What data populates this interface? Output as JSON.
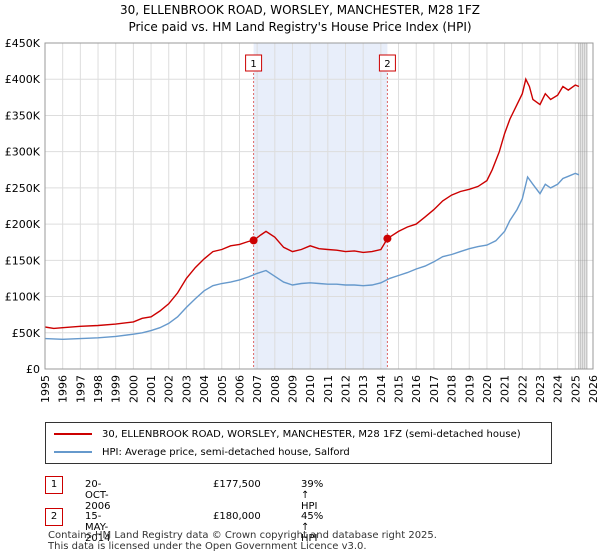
{
  "title_line1": "30, ELLENBROOK ROAD, WORSLEY, MANCHESTER, M28 1FZ",
  "title_line2": "Price paid vs. HM Land Registry's House Price Index (HPI)",
  "legend": [
    {
      "label": "30, ELLENBROOK ROAD, WORSLEY, MANCHESTER, M28 1FZ (semi-detached house)",
      "color": "#cc0000"
    },
    {
      "label": "HPI: Average price, semi-detached house, Salford",
      "color": "#6699cc"
    }
  ],
  "sales": [
    {
      "num": "1",
      "date": "20-OCT-2006",
      "price": "£177,500",
      "hpi": "39% ↑ HPI"
    },
    {
      "num": "2",
      "date": "15-MAY-2014",
      "price": "£180,000",
      "hpi": "45% ↑ HPI"
    }
  ],
  "footer_line1": "Contains HM Land Registry data © Crown copyright and database right 2025.",
  "footer_line2": "This data is licensed under the Open Government Licence v3.0.",
  "chart_data": {
    "type": "line",
    "title": "Price paid vs. HM Land Registry's House Price Index (HPI)",
    "xlabel": "",
    "ylabel": "",
    "xlim": [
      1995,
      2026
    ],
    "ylim": [
      0,
      450000
    ],
    "x_ticks": [
      "1995",
      "1996",
      "1997",
      "1998",
      "1999",
      "2000",
      "2001",
      "2002",
      "2003",
      "2004",
      "2005",
      "2006",
      "2007",
      "2008",
      "2009",
      "2010",
      "2011",
      "2012",
      "2013",
      "2014",
      "2015",
      "2016",
      "2017",
      "2018",
      "2019",
      "2020",
      "2021",
      "2022",
      "2023",
      "2024",
      "2025",
      "2026"
    ],
    "y_ticks": [
      {
        "value": 0,
        "label": "£0"
      },
      {
        "value": 50000,
        "label": "£50K"
      },
      {
        "value": 100000,
        "label": "£100K"
      },
      {
        "value": 150000,
        "label": "£150K"
      },
      {
        "value": 200000,
        "label": "£200K"
      },
      {
        "value": 250000,
        "label": "£250K"
      },
      {
        "value": 300000,
        "label": "£300K"
      },
      {
        "value": 350000,
        "label": "£350K"
      },
      {
        "value": 400000,
        "label": "£400K"
      },
      {
        "value": 450000,
        "label": "£450K"
      }
    ],
    "shaded_range": [
      2006.8,
      2014.37
    ],
    "markers": [
      {
        "label": "1",
        "x": 2006.8,
        "y": 177500
      },
      {
        "label": "2",
        "x": 2014.37,
        "y": 180000
      }
    ],
    "forecast_start": 2025.2,
    "series": [
      {
        "name": "30, ELLENBROOK ROAD, WORSLEY, MANCHESTER, M28 1FZ (semi-detached house)",
        "color": "#cc0000",
        "x": [
          1995,
          1995.5,
          1996,
          1997,
          1998,
          1999,
          2000,
          2000.5,
          2001,
          2001.5,
          2002,
          2002.5,
          2003,
          2003.5,
          2004,
          2004.5,
          2005,
          2005.5,
          2006,
          2006.5,
          2006.8,
          2007.2,
          2007.5,
          2008,
          2008.5,
          2009,
          2009.5,
          2010,
          2010.5,
          2011,
          2011.5,
          2012,
          2012.5,
          2013,
          2013.5,
          2014,
          2014.37,
          2015,
          2015.5,
          2016,
          2016.5,
          2017,
          2017.5,
          2018,
          2018.5,
          2019,
          2019.5,
          2020,
          2020.3,
          2020.7,
          2021,
          2021.3,
          2021.7,
          2022,
          2022.2,
          2022.4,
          2022.6,
          2023,
          2023.3,
          2023.6,
          2024,
          2024.3,
          2024.6,
          2025,
          2025.2
        ],
        "values": [
          58000,
          56000,
          57000,
          59000,
          60000,
          62000,
          65000,
          70000,
          72000,
          80000,
          90000,
          105000,
          125000,
          140000,
          152000,
          162000,
          165000,
          170000,
          172000,
          176000,
          177500,
          185000,
          190000,
          182000,
          168000,
          162000,
          165000,
          170000,
          166000,
          165000,
          164000,
          162000,
          163000,
          161000,
          162000,
          165000,
          180000,
          190000,
          196000,
          200000,
          210000,
          220000,
          232000,
          240000,
          245000,
          248000,
          252000,
          260000,
          275000,
          300000,
          325000,
          345000,
          365000,
          380000,
          400000,
          390000,
          372000,
          365000,
          380000,
          372000,
          378000,
          390000,
          385000,
          392000,
          390000
        ]
      },
      {
        "name": "HPI: Average price, semi-detached house, Salford",
        "color": "#6699cc",
        "x": [
          1995,
          1996,
          1997,
          1998,
          1999,
          2000,
          2000.5,
          2001,
          2001.5,
          2002,
          2002.5,
          2003,
          2003.5,
          2004,
          2004.5,
          2005,
          2005.5,
          2006,
          2006.5,
          2007,
          2007.5,
          2008,
          2008.5,
          2009,
          2009.5,
          2010,
          2010.5,
          2011,
          2011.5,
          2012,
          2012.5,
          2013,
          2013.5,
          2014,
          2014.5,
          2015,
          2015.5,
          2016,
          2016.5,
          2017,
          2017.5,
          2018,
          2018.5,
          2019,
          2019.5,
          2020,
          2020.5,
          2021,
          2021.3,
          2021.7,
          2022,
          2022.3,
          2022.6,
          2023,
          2023.3,
          2023.6,
          2024,
          2024.3,
          2024.6,
          2025,
          2025.2
        ],
        "values": [
          42000,
          41000,
          42000,
          43000,
          45000,
          48000,
          50000,
          53000,
          57000,
          63000,
          72000,
          85000,
          97000,
          108000,
          115000,
          118000,
          120000,
          123000,
          127000,
          132000,
          136000,
          128000,
          120000,
          116000,
          118000,
          119000,
          118000,
          117000,
          117000,
          116000,
          116000,
          115000,
          116000,
          119000,
          125000,
          129000,
          133000,
          138000,
          142000,
          148000,
          155000,
          158000,
          162000,
          166000,
          169000,
          171000,
          177000,
          190000,
          205000,
          220000,
          235000,
          265000,
          255000,
          242000,
          255000,
          250000,
          255000,
          263000,
          266000,
          270000,
          268000
        ]
      }
    ]
  }
}
